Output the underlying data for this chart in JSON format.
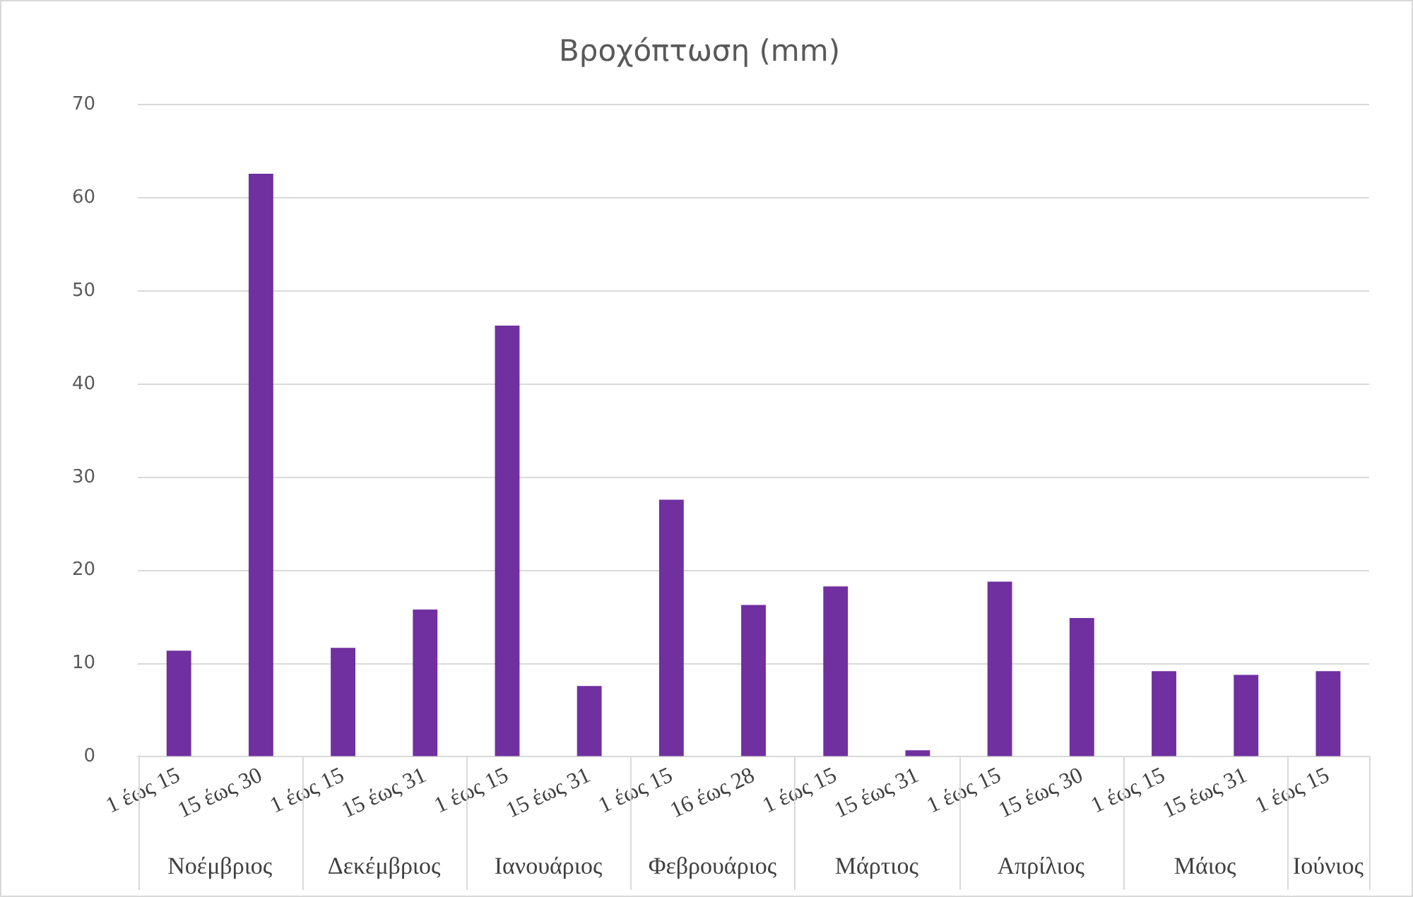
{
  "chart_data": {
    "type": "bar",
    "title": "Βροχόπτωση (mm)",
    "categories": [
      "1 έως 15",
      "15 έως 30",
      "1 έως 15",
      "15 έως 31",
      "1 έως 15",
      "15 έως 31",
      "1 έως 15",
      "16 έως 28",
      "1 έως 15",
      "15 έως 31",
      "1 έως 15",
      "15 έως 30",
      "1 έως 15",
      "15 έως 31",
      "1 έως 15"
    ],
    "values": [
      11.4,
      62.6,
      11.7,
      15.8,
      46.3,
      7.6,
      27.6,
      16.3,
      18.3,
      0.7,
      18.8,
      14.9,
      9.2,
      8.8,
      9.2
    ],
    "color": "#7030a0",
    "ylim": [
      0,
      70
    ],
    "yticks": [
      0,
      10,
      20,
      30,
      40,
      50,
      60,
      70
    ],
    "grid": "y",
    "legend": false,
    "annotations": [
      "Νοέμβριος",
      "Δεκέμβριος",
      "Ιανουάριος",
      "Φεβρουάριος",
      "Μάρτιος",
      "Απρίλιος",
      "Μάιος",
      "Ιούνιος"
    ]
  }
}
